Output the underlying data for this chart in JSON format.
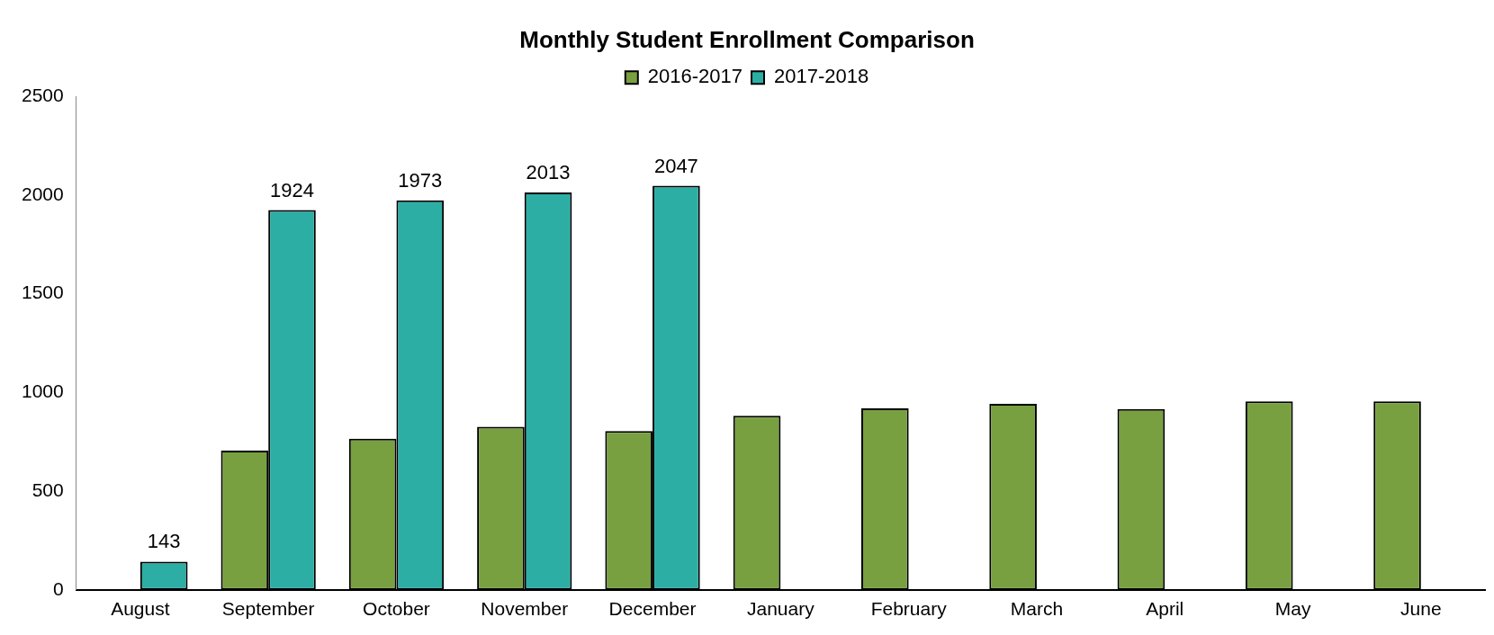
{
  "chart_data": {
    "type": "bar",
    "title": "Monthly Student Enrollment Comparison",
    "categories": [
      "August",
      "September",
      "October",
      "November",
      "December",
      "January",
      "February",
      "March",
      "April",
      "May",
      "June"
    ],
    "series": [
      {
        "name": "2016-2017",
        "color": "#78a040",
        "values": [
          null,
          706,
          766,
          826,
          805,
          882,
          920,
          942,
          916,
          955,
          955
        ]
      },
      {
        "name": "2017-2018",
        "color": "#2daea5",
        "values": [
          143,
          1924,
          1973,
          2013,
          2047,
          null,
          null,
          null,
          null,
          null,
          null
        ],
        "value_labels": [
          "143",
          "1924",
          "1973",
          "2013",
          "2047",
          null,
          null,
          null,
          null,
          null,
          null
        ]
      }
    ],
    "ylim": [
      0,
      2500
    ],
    "yticks": [
      0,
      500,
      1000,
      1500,
      2000,
      2500
    ],
    "grid": false,
    "legend": "top"
  }
}
